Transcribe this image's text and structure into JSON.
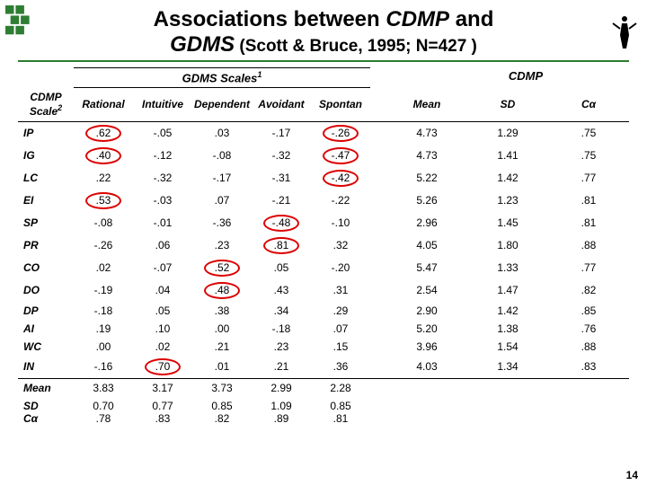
{
  "title_main_a": "Associations between ",
  "title_main_b": "CDMP",
  "title_main_c": " and ",
  "title_main_d": "GDMS",
  "title_sub": " (Scott & Bruce, 1995; N=427 )",
  "group_gdms": "GDMS Scales",
  "group_gdms_sup": "1",
  "group_cdmp": "CDMP",
  "headers": {
    "h0": "CDMP Scale",
    "h0_sup": "2",
    "h1": "Rational",
    "h2": "Intuitive",
    "h3": "Dependent",
    "h4": "Avoidant",
    "h5": "Spontan",
    "h6": "Mean",
    "h7": "SD",
    "h8": "Cα"
  },
  "rows": [
    {
      "label": "IP",
      "c": [
        ".62",
        "-.05",
        ".03",
        "-.17",
        "-.26",
        "4.73",
        "1.29",
        ".75"
      ],
      "hl": [
        0,
        4
      ]
    },
    {
      "label": "IG",
      "c": [
        ".40",
        "-.12",
        "-.08",
        "-.32",
        "-.47",
        "4.73",
        "1.41",
        ".75"
      ],
      "hl": [
        0,
        4
      ]
    },
    {
      "label": "LC",
      "c": [
        ".22",
        "-.32",
        "-.17",
        "-.31",
        "-.42",
        "5.22",
        "1.42",
        ".77"
      ],
      "hl": [
        4
      ]
    },
    {
      "label": "EI",
      "c": [
        ".53",
        "-.03",
        ".07",
        "-.21",
        "-.22",
        "5.26",
        "1.23",
        ".81"
      ],
      "hl": [
        0
      ]
    },
    {
      "label": "SP",
      "c": [
        "-.08",
        "-.01",
        "-.36",
        "-.48",
        "-.10",
        "2.96",
        "1.45",
        ".81"
      ],
      "hl": [
        3
      ]
    },
    {
      "label": "PR",
      "c": [
        "-.26",
        ".06",
        ".23",
        ".81",
        ".32",
        "4.05",
        "1.80",
        ".88"
      ],
      "hl": [
        3
      ]
    },
    {
      "label": "CO",
      "c": [
        ".02",
        "-.07",
        ".52",
        ".05",
        "-.20",
        "5.47",
        "1.33",
        ".77"
      ],
      "hl": [
        2
      ]
    },
    {
      "label": "DO",
      "c": [
        "-.19",
        ".04",
        ".48",
        ".43",
        ".31",
        "2.54",
        "1.47",
        ".82"
      ],
      "hl": [
        2
      ]
    },
    {
      "label": "DP",
      "c": [
        "-.18",
        ".05",
        ".38",
        ".34",
        ".29",
        "2.90",
        "1.42",
        ".85"
      ],
      "hl": []
    },
    {
      "label": "AI",
      "c": [
        ".19",
        ".10",
        ".00",
        "-.18",
        ".07",
        "5.20",
        "1.38",
        ".76"
      ],
      "hl": []
    },
    {
      "label": "WC",
      "c": [
        ".00",
        ".02",
        ".21",
        ".23",
        ".15",
        "3.96",
        "1.54",
        ".88"
      ],
      "hl": []
    },
    {
      "label": "IN",
      "c": [
        "-.16",
        ".70",
        ".01",
        ".21",
        ".36",
        "4.03",
        "1.34",
        ".83"
      ],
      "hl": [
        1
      ]
    }
  ],
  "mean": {
    "label": "Mean",
    "c": [
      "3.83",
      "3.17",
      "3.73",
      "2.99",
      "2.28"
    ]
  },
  "sd": {
    "label": "SD",
    "c": [
      "0.70",
      "0.77",
      "0.85",
      "1.09",
      "0.85"
    ]
  },
  "ca": {
    "label": "Cα",
    "c": [
      ".78",
      ".83",
      ".82",
      ".89",
      ".81"
    ]
  },
  "slide_num": "14"
}
